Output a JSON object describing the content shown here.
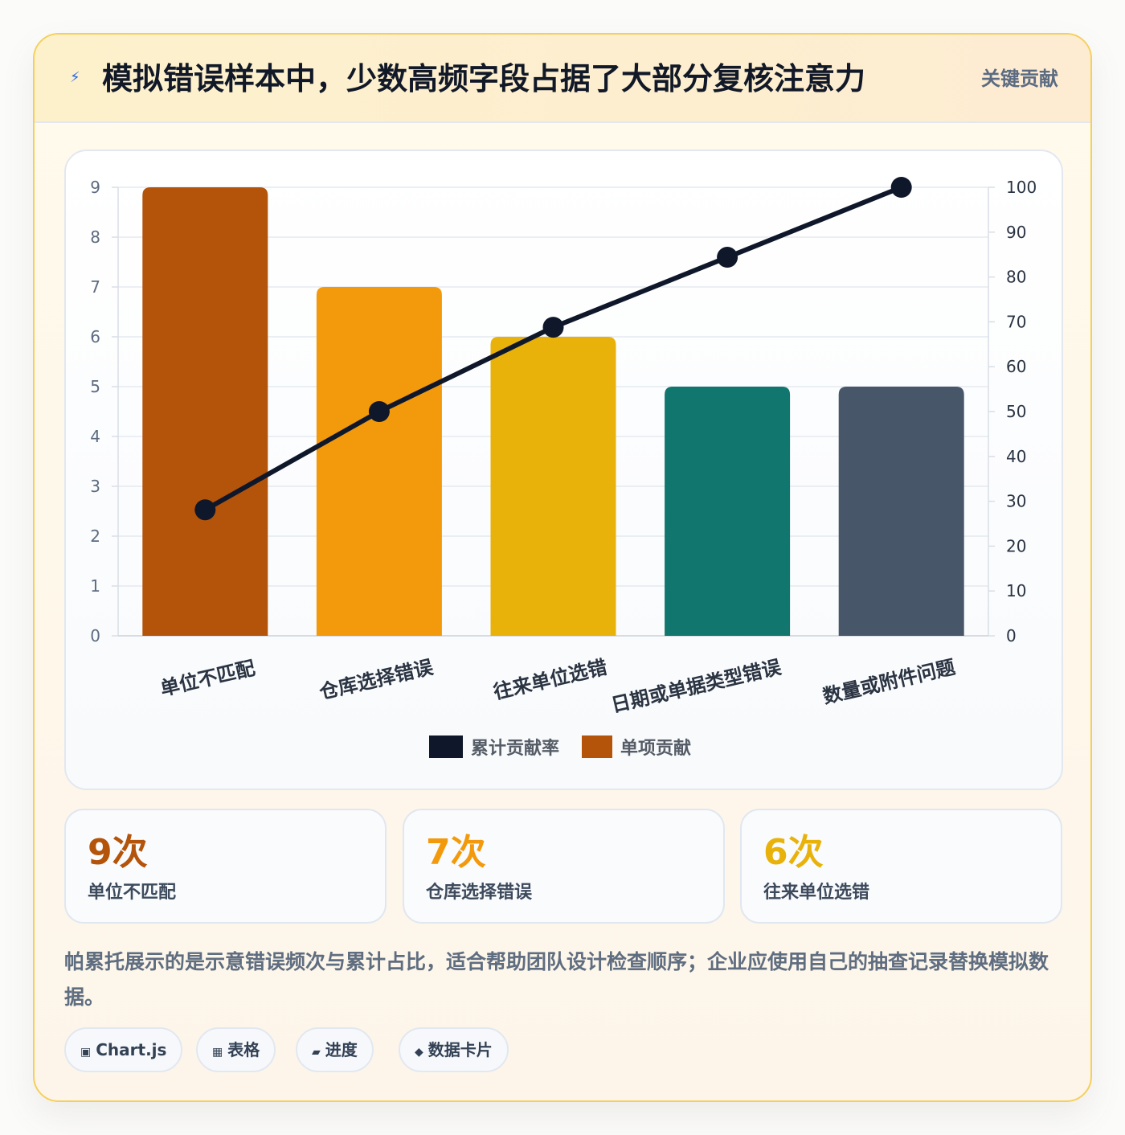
{
  "header": {
    "icon": "lightning-icon",
    "title": "模拟错误样本中，少数高频字段占据了大部分复核注意力",
    "badge": "关键贡献"
  },
  "chart_data": {
    "type": "bar",
    "categories": [
      "单位不匹配",
      "仓库选择错误",
      "往来单位选错",
      "日期或单据类型错误",
      "数量或附件问题"
    ],
    "series": [
      {
        "name": "累计贡献率",
        "type": "line",
        "axis": "right",
        "color": "#0f172a",
        "values": [
          28.1,
          50.0,
          68.8,
          84.4,
          100
        ]
      },
      {
        "name": "单项贡献",
        "type": "bar",
        "axis": "left",
        "colors": [
          "#b4530a",
          "#f29a0b",
          "#e8b20b",
          "#10766e",
          "#475669"
        ],
        "values": [
          9,
          7,
          6,
          5,
          5
        ]
      }
    ],
    "ylim": [
      0,
      9
    ],
    "y_ticks": [
      0,
      1,
      2,
      3,
      4,
      5,
      6,
      7,
      8,
      9
    ],
    "y2lim": [
      0,
      100
    ],
    "y2_ticks": [
      0,
      10,
      20,
      30,
      40,
      50,
      60,
      70,
      80,
      90,
      100
    ],
    "xlabel": "",
    "ylabel": "",
    "grid": true,
    "legend": "bottom",
    "legend_entries": [
      {
        "label": "累计贡献率",
        "color": "#0f172a"
      },
      {
        "label": "单项贡献",
        "color": "#b4530a"
      }
    ]
  },
  "stats": [
    {
      "value": "9次",
      "label": "单位不匹配",
      "color": "#b4530a"
    },
    {
      "value": "7次",
      "label": "仓库选择错误",
      "color": "#f29a0b"
    },
    {
      "value": "6次",
      "label": "往来单位选错",
      "color": "#e8b20b"
    }
  ],
  "note": "帕累托展示的是示意错误频次与累计占比，适合帮助团队设计检查顺序；企业应使用自己的抽查记录替换模拟数据。",
  "tags": [
    {
      "icon": "square-icon",
      "glyph": "▣",
      "label": "Chart.js"
    },
    {
      "icon": "grid-icon",
      "glyph": "▦",
      "label": "表格"
    },
    {
      "icon": "progress-icon",
      "glyph": "▰",
      "label": "进度"
    },
    {
      "icon": "diamond-icon",
      "glyph": "◆",
      "label": "数据卡片"
    }
  ]
}
